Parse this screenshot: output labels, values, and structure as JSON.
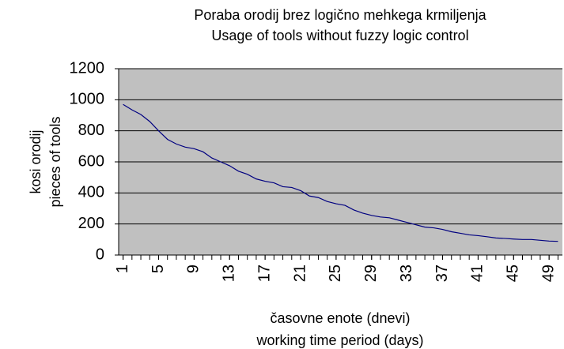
{
  "chart_data": {
    "type": "line",
    "title": "Poraba orodij brez logično mehkega krmiljenja",
    "subtitle": "Usage of tools without fuzzy logic control",
    "y_label": [
      "kosi orodij",
      "pieces of tools"
    ],
    "x_label": [
      "časovne enote (dnevi)",
      "working time period (days)"
    ],
    "x": [
      1,
      2,
      3,
      4,
      5,
      6,
      7,
      8,
      9,
      10,
      11,
      12,
      13,
      14,
      15,
      16,
      17,
      18,
      19,
      20,
      21,
      22,
      23,
      24,
      25,
      26,
      27,
      28,
      29,
      30,
      31,
      32,
      33,
      34,
      35,
      36,
      37,
      38,
      39,
      40,
      41,
      42,
      43,
      44,
      45,
      46,
      47,
      48,
      49,
      50
    ],
    "series": [
      {
        "name": "kosi orodij",
        "color": "#000080",
        "values": [
          970,
          935,
          905,
          860,
          800,
          745,
          715,
          695,
          685,
          665,
          625,
          600,
          575,
          540,
          520,
          490,
          475,
          465,
          440,
          435,
          415,
          380,
          370,
          345,
          330,
          320,
          290,
          270,
          255,
          245,
          240,
          225,
          210,
          195,
          180,
          175,
          165,
          150,
          140,
          130,
          125,
          118,
          110,
          107,
          103,
          100,
          100,
          95,
          90,
          88
        ]
      }
    ],
    "xlim": [
      0.5,
      50.5
    ],
    "xticks": [
      1,
      5,
      9,
      13,
      17,
      21,
      25,
      29,
      33,
      37,
      41,
      45,
      49
    ],
    "ylim": [
      0,
      1200
    ],
    "yticks": [
      0,
      200,
      400,
      600,
      800,
      1000,
      1200
    ],
    "grid": true,
    "plot_background": "#c0c0c0"
  }
}
